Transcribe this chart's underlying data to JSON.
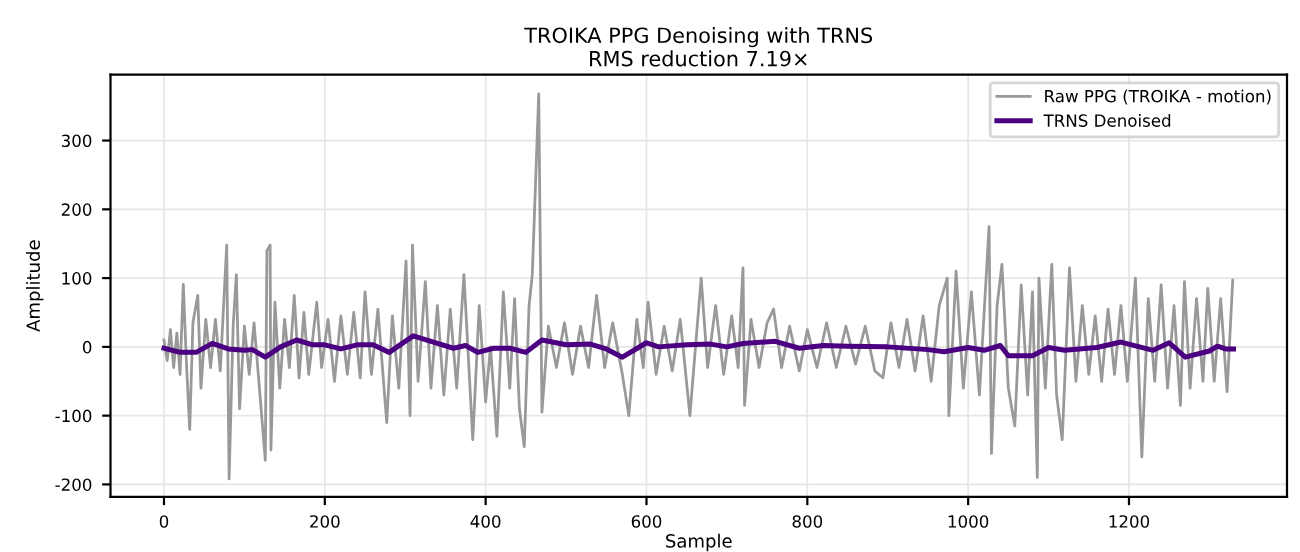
{
  "chart_data": {
    "type": "line",
    "title": "TROIKA PPG Denoising with TRNS",
    "subtitle": "RMS reduction 7.19×",
    "xlabel": "Sample",
    "ylabel": "Amplitude",
    "xlim": [
      -66.5,
      1396.5
    ],
    "ylim": [
      -218,
      396
    ],
    "xticks": [
      0,
      200,
      400,
      600,
      800,
      1000,
      1200
    ],
    "yticks": [
      -200,
      -100,
      0,
      100,
      200,
      300
    ],
    "grid": true,
    "legend": "top right",
    "series": [
      {
        "name": "Raw PPG (TROIKA - motion)",
        "color": "#999999",
        "x": [
          0,
          4,
          8,
          12,
          16,
          20,
          24,
          28,
          32,
          36,
          42,
          46,
          52,
          58,
          64,
          70,
          78,
          81,
          86,
          90,
          94,
          100,
          106,
          112,
          118,
          126,
          128,
          132,
          133,
          138,
          144,
          150,
          156,
          162,
          168,
          174,
          180,
          190,
          196,
          204,
          212,
          220,
          228,
          236,
          244,
          250,
          258,
          266,
          277,
          284,
          292,
          301,
          306,
          309,
          316,
          325,
          332,
          340,
          348,
          356,
          364,
          373,
          384,
          392,
          400,
          406,
          414,
          422,
          430,
          436,
          442,
          448,
          454,
          458,
          466,
          470,
          478,
          488,
          498,
          508,
          518,
          528,
          538,
          548,
          558,
          570,
          578,
          588,
          596,
          602,
          612,
          622,
          632,
          642,
          654,
          668,
          676,
          686,
          696,
          706,
          714,
          720,
          722,
          730,
          740,
          750,
          758,
          768,
          778,
          790,
          800,
          812,
          824,
          836,
          848,
          860,
          872,
          884,
          894,
          904,
          914,
          924,
          934,
          944,
          954,
          964,
          974,
          976,
          985,
          994,
          1004,
          1014,
          1026,
          1029,
          1036,
          1042,
          1050,
          1058,
          1066,
          1074,
          1080,
          1086,
          1088,
          1096,
          1104,
          1110,
          1117,
          1126,
          1134,
          1142,
          1150,
          1158,
          1166,
          1174,
          1182,
          1190,
          1198,
          1208,
          1216,
          1224,
          1232,
          1240,
          1248,
          1256,
          1264,
          1269,
          1276,
          1284,
          1292,
          1298,
          1306,
          1314,
          1322,
          1329
        ],
        "values": [
          10,
          -20,
          25,
          -30,
          20,
          -40,
          91,
          -25,
          -120,
          35,
          75,
          -60,
          40,
          -30,
          40,
          -35,
          148,
          -192,
          30,
          105,
          -90,
          30,
          -40,
          35,
          -50,
          -165,
          140,
          148,
          -150,
          65,
          -60,
          40,
          -30,
          75,
          -45,
          50,
          -40,
          65,
          -30,
          40,
          -50,
          45,
          -40,
          50,
          -45,
          80,
          -40,
          55,
          -110,
          45,
          -60,
          125,
          -100,
          148,
          -50,
          95,
          -60,
          60,
          -70,
          55,
          -60,
          105,
          -135,
          60,
          -80,
          0,
          -130,
          80,
          -60,
          70,
          -90,
          -145,
          60,
          105,
          368,
          -95,
          30,
          -30,
          35,
          -40,
          30,
          -30,
          75,
          -30,
          35,
          -40,
          -100,
          40,
          -30,
          65,
          -40,
          30,
          -35,
          40,
          -100,
          100,
          -30,
          60,
          -40,
          45,
          -30,
          115,
          -85,
          40,
          -30,
          35,
          55,
          -30,
          30,
          -35,
          25,
          -30,
          35,
          -30,
          30,
          -25,
          30,
          -35,
          -45,
          35,
          -30,
          40,
          -35,
          45,
          -50,
          60,
          100,
          -100,
          110,
          -60,
          80,
          -70,
          175,
          -155,
          60,
          120,
          -60,
          -115,
          90,
          -70,
          80,
          -190,
          100,
          -60,
          120,
          -70,
          -135,
          115,
          -50,
          60,
          -40,
          45,
          -50,
          55,
          -40,
          60,
          -50,
          100,
          -160,
          70,
          -50,
          90,
          -60,
          60,
          -85,
          95,
          -60,
          70,
          -50,
          85,
          -50,
          70,
          -65,
          97
        ]
      },
      {
        "name": "TRNS Denoised",
        "color": "#4b0082",
        "x": [
          0,
          20,
          40,
          60,
          80,
          100,
          110,
          126,
          145,
          165,
          185,
          200,
          220,
          240,
          260,
          280,
          310,
          340,
          360,
          375,
          390,
          410,
          430,
          450,
          470,
          500,
          530,
          550,
          570,
          600,
          615,
          650,
          680,
          700,
          720,
          760,
          790,
          820,
          850,
          900,
          950,
          970,
          1000,
          1020,
          1040,
          1050,
          1080,
          1100,
          1120,
          1160,
          1190,
          1230,
          1250,
          1270,
          1300,
          1310,
          1320,
          1330
        ],
        "values": [
          -2,
          -8,
          -8,
          5,
          -3,
          -5,
          -4,
          -15,
          0,
          10,
          3,
          3,
          -3,
          3,
          3,
          -8,
          16,
          5,
          -2,
          2,
          -8,
          -2,
          -2,
          -8,
          10,
          3,
          4,
          -3,
          -15,
          6,
          0,
          3,
          4,
          0,
          5,
          8,
          -2,
          2,
          1,
          0,
          -4,
          -7,
          -1,
          -5,
          2,
          -13,
          -13,
          -1,
          -5,
          -1,
          7,
          -5,
          6,
          -15,
          -6,
          1,
          -3,
          -3
        ]
      }
    ]
  }
}
